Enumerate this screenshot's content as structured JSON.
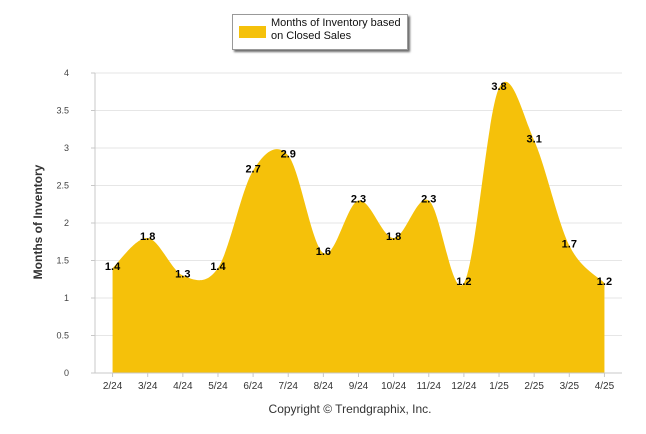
{
  "chart_data": {
    "type": "area",
    "categories": [
      "2/24",
      "3/24",
      "4/24",
      "5/24",
      "6/24",
      "7/24",
      "8/24",
      "9/24",
      "10/24",
      "11/24",
      "12/24",
      "1/25",
      "2/25",
      "3/25",
      "4/25"
    ],
    "series": [
      {
        "name": "Months of Inventory based on Closed Sales",
        "values": [
          1.4,
          1.8,
          1.3,
          1.4,
          2.7,
          2.9,
          1.6,
          2.3,
          1.8,
          2.3,
          1.2,
          3.8,
          3.1,
          1.7,
          1.2
        ]
      }
    ],
    "title": "",
    "xlabel": "",
    "ylabel": "Months of Inventory",
    "ylim": [
      0,
      4
    ],
    "yticks": [
      0,
      0.5,
      1,
      1.5,
      2,
      2.5,
      3,
      3.5,
      4
    ],
    "ytick_labels": [
      "0",
      "0.5",
      "1",
      "1.5",
      "2",
      "2.5",
      "3",
      "3.5",
      "4"
    ],
    "grid": true,
    "legend_position": "top-center",
    "fill_color": "#f5c10a",
    "footer": "Copyright © Trendgraphix, Inc."
  }
}
